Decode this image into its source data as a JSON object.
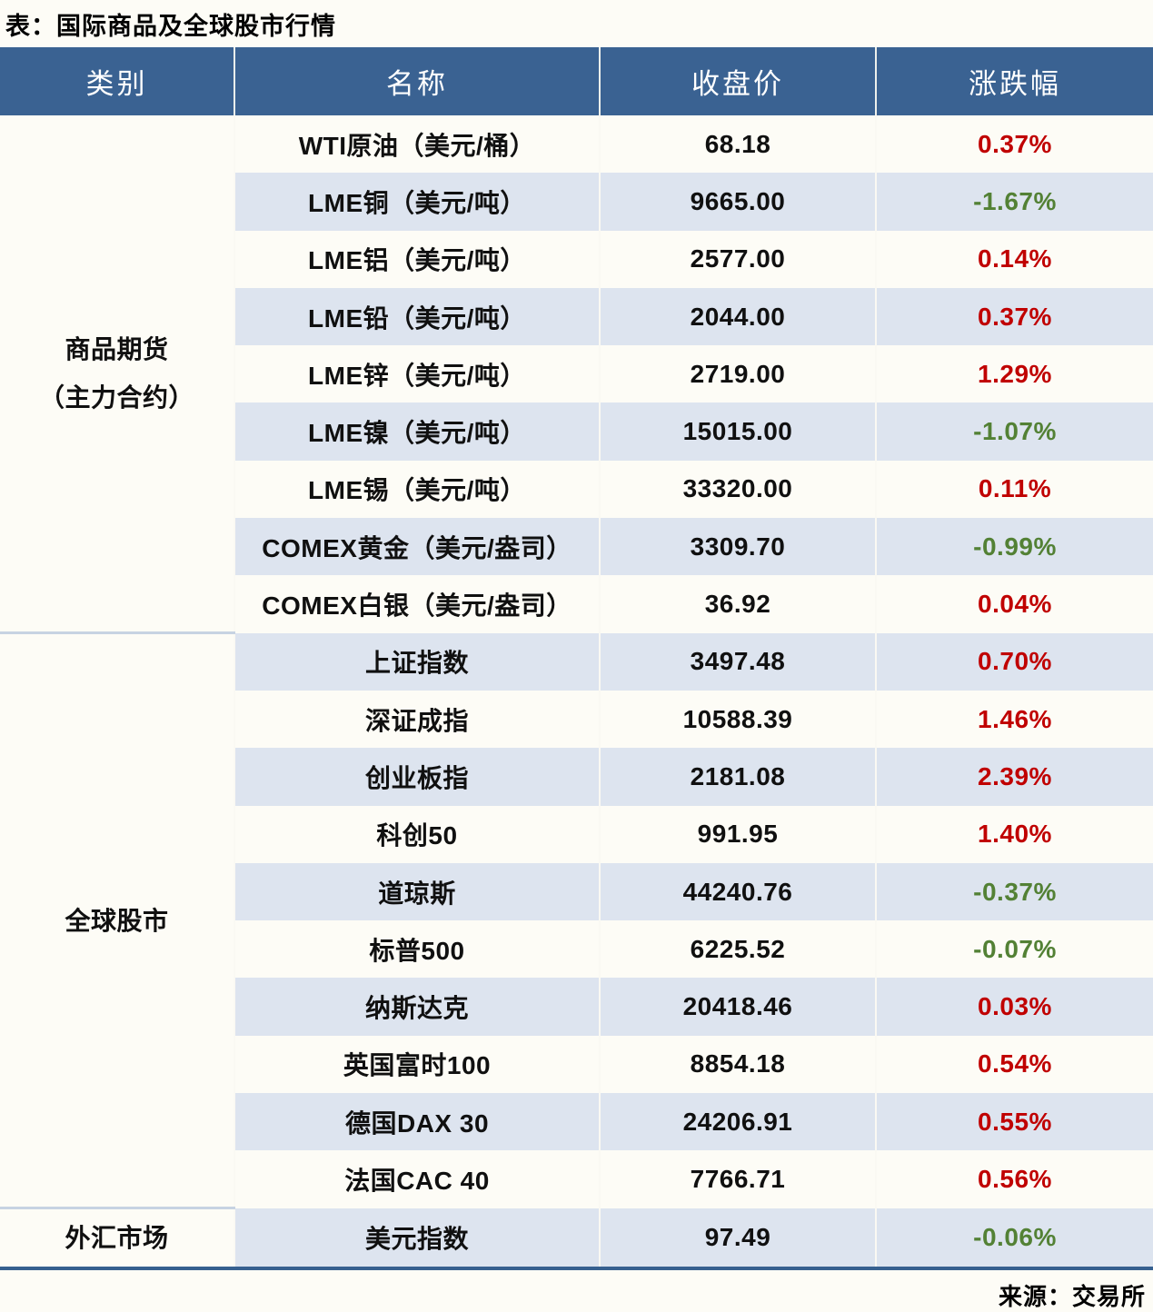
{
  "title": "表：国际商品及全球股市行情",
  "source": "来源：交易所",
  "colors": {
    "header_bg": "#3A6292",
    "shaded_row_bg": "#DDE4EF",
    "up_red": "#C00000",
    "down_green": "#538135",
    "bottom_border": "#36608F",
    "section_divider": "#C7D3E2",
    "page_bg": "#FDFCF6"
  },
  "table": {
    "headers": [
      "类别",
      "名称",
      "收盘价",
      "涨跌幅"
    ],
    "sections": [
      {
        "category_lines": [
          "商品期货",
          "（主力合约）"
        ],
        "rows": [
          {
            "name": "WTI原油（美元/桶）",
            "close": "68.18",
            "change": "0.37%",
            "direction": "up"
          },
          {
            "name": "LME铜（美元/吨）",
            "close": "9665.00",
            "change": "-1.67%",
            "direction": "down"
          },
          {
            "name": "LME铝（美元/吨）",
            "close": "2577.00",
            "change": "0.14%",
            "direction": "up"
          },
          {
            "name": "LME铅（美元/吨）",
            "close": "2044.00",
            "change": "0.37%",
            "direction": "up"
          },
          {
            "name": "LME锌（美元/吨）",
            "close": "2719.00",
            "change": "1.29%",
            "direction": "up"
          },
          {
            "name": "LME镍（美元/吨）",
            "close": "15015.00",
            "change": "-1.07%",
            "direction": "down"
          },
          {
            "name": "LME锡（美元/吨）",
            "close": "33320.00",
            "change": "0.11%",
            "direction": "up"
          },
          {
            "name": "COMEX黄金（美元/盎司）",
            "close": "3309.70",
            "change": "-0.99%",
            "direction": "down"
          },
          {
            "name": "COMEX白银（美元/盎司）",
            "close": "36.92",
            "change": "0.04%",
            "direction": "up"
          }
        ]
      },
      {
        "category_lines": [
          "全球股市"
        ],
        "rows": [
          {
            "name": "上证指数",
            "close": "3497.48",
            "change": "0.70%",
            "direction": "up"
          },
          {
            "name": "深证成指",
            "close": "10588.39",
            "change": "1.46%",
            "direction": "up"
          },
          {
            "name": "创业板指",
            "close": "2181.08",
            "change": "2.39%",
            "direction": "up"
          },
          {
            "name": "科创50",
            "close": "991.95",
            "change": "1.40%",
            "direction": "up"
          },
          {
            "name": "道琼斯",
            "close": "44240.76",
            "change": "-0.37%",
            "direction": "down"
          },
          {
            "name": "标普500",
            "close": "6225.52",
            "change": "-0.07%",
            "direction": "down"
          },
          {
            "name": "纳斯达克",
            "close": "20418.46",
            "change": "0.03%",
            "direction": "up"
          },
          {
            "name": "英国富时100",
            "close": "8854.18",
            "change": "0.54%",
            "direction": "up"
          },
          {
            "name": "德国DAX 30",
            "close": "24206.91",
            "change": "0.55%",
            "direction": "up"
          },
          {
            "name": "法国CAC 40",
            "close": "7766.71",
            "change": "0.56%",
            "direction": "up"
          }
        ]
      },
      {
        "category_lines": [
          "外汇市场"
        ],
        "rows": [
          {
            "name": "美元指数",
            "close": "97.49",
            "change": "-0.06%",
            "direction": "down"
          }
        ]
      }
    ]
  },
  "chart_data": {
    "type": "table",
    "title": "表：国际商品及全球股市行情",
    "columns": [
      "类别",
      "名称",
      "收盘价",
      "涨跌幅"
    ],
    "rows": [
      [
        "商品期货（主力合约）",
        "WTI原油（美元/桶）",
        68.18,
        "0.37%"
      ],
      [
        "商品期货（主力合约）",
        "LME铜（美元/吨）",
        9665.0,
        "-1.67%"
      ],
      [
        "商品期货（主力合约）",
        "LME铝（美元/吨）",
        2577.0,
        "0.14%"
      ],
      [
        "商品期货（主力合约）",
        "LME铅（美元/吨）",
        2044.0,
        "0.37%"
      ],
      [
        "商品期货（主力合约）",
        "LME锌（美元/吨）",
        2719.0,
        "1.29%"
      ],
      [
        "商品期货（主力合约）",
        "LME镍（美元/吨）",
        15015.0,
        "-1.07%"
      ],
      [
        "商品期货（主力合约）",
        "LME锡（美元/吨）",
        33320.0,
        "0.11%"
      ],
      [
        "商品期货（主力合约）",
        "COMEX黄金（美元/盎司）",
        3309.7,
        "-0.99%"
      ],
      [
        "商品期货（主力合约）",
        "COMEX白银（美元/盎司）",
        36.92,
        "0.04%"
      ],
      [
        "全球股市",
        "上证指数",
        3497.48,
        "0.70%"
      ],
      [
        "全球股市",
        "深证成指",
        10588.39,
        "1.46%"
      ],
      [
        "全球股市",
        "创业板指",
        2181.08,
        "2.39%"
      ],
      [
        "全球股市",
        "科创50",
        991.95,
        "1.40%"
      ],
      [
        "全球股市",
        "道琼斯",
        44240.76,
        "-0.37%"
      ],
      [
        "全球股市",
        "标普500",
        6225.52,
        "-0.07%"
      ],
      [
        "全球股市",
        "纳斯达克",
        20418.46,
        "0.03%"
      ],
      [
        "全球股市",
        "英国富时100",
        8854.18,
        "0.54%"
      ],
      [
        "全球股市",
        "德国DAX 30",
        24206.91,
        "0.55%"
      ],
      [
        "全球股市",
        "法国CAC 40",
        7766.71,
        "0.56%"
      ],
      [
        "外汇市场",
        "美元指数",
        97.49,
        "-0.06%"
      ]
    ],
    "source": "来源：交易所",
    "legend_position": "none",
    "grid": false
  }
}
